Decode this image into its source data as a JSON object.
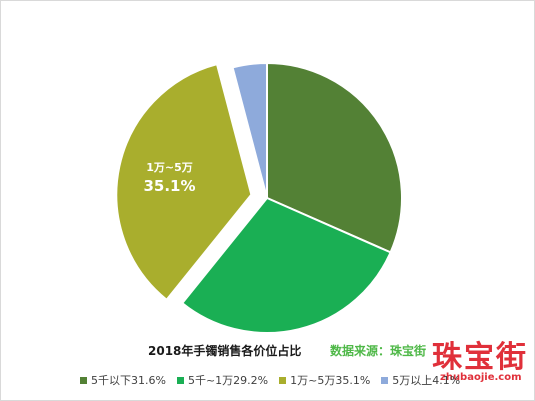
{
  "chart_data": {
    "type": "pie",
    "title": "2018年手镯销售各价位占比",
    "source": "数据来源：珠宝街",
    "slices": [
      {
        "name": "5千以下",
        "value": 31.6,
        "color": "#538135",
        "legend_label": "5千以下31.6%"
      },
      {
        "name": "5千~1万",
        "value": 29.2,
        "color": "#1aaf54",
        "legend_label": "5千~1万29.2%"
      },
      {
        "name": "1万~5万",
        "value": 35.1,
        "color": "#a9ae2d",
        "legend_label": "1万~5万35.1%",
        "data_label_name": "1万~5万",
        "data_label_value": "35.1%",
        "exploded": true
      },
      {
        "name": "5万以上",
        "value": 4.1,
        "color": "#8eaadb",
        "legend_label": "5万以上4.1%"
      }
    ],
    "legend_position": "bottom"
  },
  "watermark": {
    "brand": "珠宝街",
    "url": "zhubaojie.com"
  }
}
